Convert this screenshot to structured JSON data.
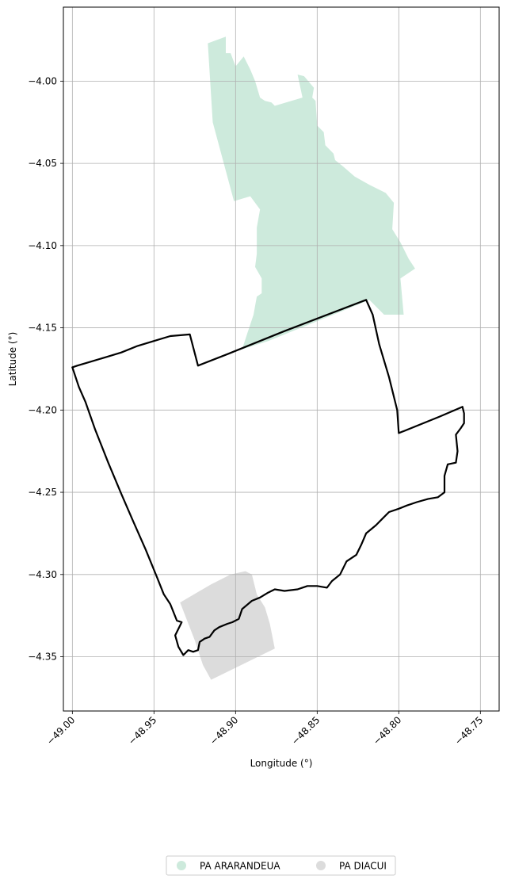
{
  "chart_data": {
    "type": "map",
    "xlabel": "Longitude (°)",
    "ylabel": "Latitude (°)",
    "xlim": [
      -49.0055,
      -48.7385
    ],
    "ylim": [
      -4.383,
      -3.955
    ],
    "grid": true,
    "legend_position": "bottom-center",
    "x_ticks": [
      {
        "value": -49.0,
        "label": "−49.00"
      },
      {
        "value": -48.95,
        "label": "−48.95"
      },
      {
        "value": -48.9,
        "label": "−48.90"
      },
      {
        "value": -48.85,
        "label": "−48.85"
      },
      {
        "value": -48.8,
        "label": "−48.80"
      },
      {
        "value": -48.75,
        "label": "−48.75"
      }
    ],
    "y_ticks": [
      {
        "value": -4.0,
        "label": "−4.00"
      },
      {
        "value": -4.05,
        "label": "−4.05"
      },
      {
        "value": -4.1,
        "label": "−4.10"
      },
      {
        "value": -4.15,
        "label": "−4.15"
      },
      {
        "value": -4.2,
        "label": "−4.20"
      },
      {
        "value": -4.25,
        "label": "−4.25"
      },
      {
        "value": -4.3,
        "label": "−4.30"
      },
      {
        "value": -4.35,
        "label": "−4.35"
      }
    ],
    "layers": [
      {
        "id": "ararandeua",
        "name": "PA ARARANDEUA",
        "color": "#cdeadc",
        "coords": [
          [
            -48.917,
            -3.977
          ],
          [
            -48.906,
            -3.973
          ],
          [
            -48.906,
            -3.983
          ],
          [
            -48.903,
            -3.983
          ],
          [
            -48.9,
            -3.991
          ],
          [
            -48.895,
            -3.985
          ],
          [
            -48.891,
            -3.993
          ],
          [
            -48.888,
            -4.0
          ],
          [
            -48.885,
            -4.01
          ],
          [
            -48.882,
            -4.012
          ],
          [
            -48.878,
            -4.013
          ],
          [
            -48.876,
            -4.015
          ],
          [
            -48.859,
            -4.01
          ],
          [
            -48.862,
            -3.996
          ],
          [
            -48.858,
            -3.997
          ],
          [
            -48.852,
            -4.004
          ],
          [
            -48.853,
            -4.01
          ],
          [
            -48.851,
            -4.012
          ],
          [
            -48.85,
            -4.027
          ],
          [
            -48.846,
            -4.031
          ],
          [
            -48.845,
            -4.039
          ],
          [
            -48.84,
            -4.044
          ],
          [
            -48.839,
            -4.048
          ],
          [
            -48.834,
            -4.052
          ],
          [
            -48.827,
            -4.058
          ],
          [
            -48.818,
            -4.063
          ],
          [
            -48.808,
            -4.068
          ],
          [
            -48.803,
            -4.074
          ],
          [
            -48.804,
            -4.09
          ],
          [
            -48.799,
            -4.098
          ],
          [
            -48.794,
            -4.108
          ],
          [
            -48.79,
            -4.114
          ],
          [
            -48.799,
            -4.12
          ],
          [
            -48.797,
            -4.142
          ],
          [
            -48.809,
            -4.142
          ],
          [
            -48.818,
            -4.133
          ],
          [
            -48.835,
            -4.14
          ],
          [
            -48.88,
            -4.158
          ],
          [
            -48.896,
            -4.163
          ],
          [
            -48.893,
            -4.154
          ],
          [
            -48.889,
            -4.142
          ],
          [
            -48.887,
            -4.131
          ],
          [
            -48.884,
            -4.129
          ],
          [
            -48.884,
            -4.12
          ],
          [
            -48.888,
            -4.113
          ],
          [
            -48.887,
            -4.105
          ],
          [
            -48.887,
            -4.089
          ],
          [
            -48.885,
            -4.078
          ],
          [
            -48.891,
            -4.07
          ],
          [
            -48.901,
            -4.073
          ],
          [
            -48.914,
            -4.025
          ],
          [
            -48.917,
            -3.977
          ]
        ]
      },
      {
        "id": "diacui",
        "name": "PA DIACUI",
        "color": "#dcdcdc",
        "coords": [
          [
            -48.934,
            -4.317
          ],
          [
            -48.915,
            -4.306
          ],
          [
            -48.903,
            -4.3
          ],
          [
            -48.894,
            -4.298
          ],
          [
            -48.89,
            -4.3
          ],
          [
            -48.887,
            -4.312
          ],
          [
            -48.882,
            -4.32
          ],
          [
            -48.879,
            -4.33
          ],
          [
            -48.876,
            -4.345
          ],
          [
            -48.915,
            -4.364
          ],
          [
            -48.92,
            -4.355
          ],
          [
            -48.925,
            -4.34
          ],
          [
            -48.934,
            -4.317
          ]
        ]
      },
      {
        "id": "boundary",
        "name": "",
        "color": "#000000",
        "coords": [
          [
            -49.0,
            -4.174
          ],
          [
            -48.997,
            -4.173
          ],
          [
            -48.99,
            -4.171
          ],
          [
            -48.98,
            -4.168
          ],
          [
            -48.97,
            -4.165
          ],
          [
            -48.96,
            -4.161
          ],
          [
            -48.95,
            -4.158
          ],
          [
            -48.94,
            -4.155
          ],
          [
            -48.928,
            -4.154
          ],
          [
            -48.923,
            -4.173
          ],
          [
            -48.905,
            -4.166
          ],
          [
            -48.87,
            -4.152
          ],
          [
            -48.82,
            -4.133
          ],
          [
            -48.816,
            -4.142
          ],
          [
            -48.812,
            -4.16
          ],
          [
            -48.806,
            -4.18
          ],
          [
            -48.801,
            -4.2
          ],
          [
            -48.8,
            -4.214
          ],
          [
            -48.775,
            -4.204
          ],
          [
            -48.761,
            -4.198
          ],
          [
            -48.76,
            -4.202
          ],
          [
            -48.76,
            -4.208
          ],
          [
            -48.762,
            -4.211
          ],
          [
            -48.765,
            -4.215
          ],
          [
            -48.764,
            -4.225
          ],
          [
            -48.765,
            -4.232
          ],
          [
            -48.77,
            -4.233
          ],
          [
            -48.772,
            -4.24
          ],
          [
            -48.772,
            -4.25
          ],
          [
            -48.776,
            -4.253
          ],
          [
            -48.782,
            -4.254
          ],
          [
            -48.789,
            -4.256
          ],
          [
            -48.795,
            -4.258
          ],
          [
            -48.8,
            -4.26
          ],
          [
            -48.806,
            -4.262
          ],
          [
            -48.81,
            -4.266
          ],
          [
            -48.814,
            -4.27
          ],
          [
            -48.82,
            -4.275
          ],
          [
            -48.823,
            -4.282
          ],
          [
            -48.826,
            -4.288
          ],
          [
            -48.832,
            -4.292
          ],
          [
            -48.836,
            -4.3
          ],
          [
            -48.841,
            -4.304
          ],
          [
            -48.844,
            -4.308
          ],
          [
            -48.85,
            -4.307
          ],
          [
            -48.856,
            -4.307
          ],
          [
            -48.862,
            -4.309
          ],
          [
            -48.87,
            -4.31
          ],
          [
            -48.876,
            -4.309
          ],
          [
            -48.88,
            -4.311
          ],
          [
            -48.885,
            -4.314
          ],
          [
            -48.89,
            -4.316
          ],
          [
            -48.896,
            -4.321
          ],
          [
            -48.898,
            -4.327
          ],
          [
            -48.902,
            -4.329
          ],
          [
            -48.905,
            -4.33
          ],
          [
            -48.91,
            -4.332
          ],
          [
            -48.913,
            -4.334
          ],
          [
            -48.916,
            -4.338
          ],
          [
            -48.919,
            -4.339
          ],
          [
            -48.922,
            -4.341
          ],
          [
            -48.923,
            -4.346
          ],
          [
            -48.926,
            -4.347
          ],
          [
            -48.929,
            -4.346
          ],
          [
            -48.932,
            -4.349
          ],
          [
            -48.935,
            -4.344
          ],
          [
            -48.937,
            -4.337
          ],
          [
            -48.933,
            -4.329
          ],
          [
            -48.936,
            -4.328
          ],
          [
            -48.94,
            -4.318
          ],
          [
            -48.944,
            -4.312
          ],
          [
            -48.948,
            -4.302
          ],
          [
            -48.955,
            -4.285
          ],
          [
            -48.963,
            -4.267
          ],
          [
            -48.97,
            -4.251
          ],
          [
            -48.978,
            -4.232
          ],
          [
            -48.986,
            -4.212
          ],
          [
            -48.992,
            -4.195
          ],
          [
            -48.996,
            -4.186
          ],
          [
            -49.0,
            -4.174
          ]
        ]
      }
    ],
    "legend": [
      {
        "label": "PA ARARANDEUA",
        "color": "#cdeadc"
      },
      {
        "label": "PA DIACUI",
        "color": "#dcdcdc"
      }
    ]
  }
}
